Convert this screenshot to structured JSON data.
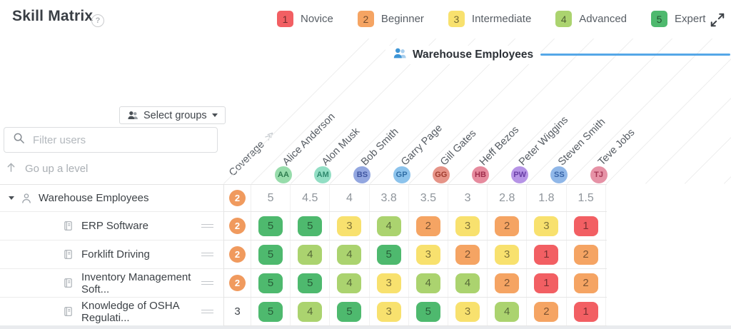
{
  "header": {
    "title": "Skill Matrix",
    "legend": [
      {
        "level": "1",
        "label": "Novice",
        "color": "#f25f63"
      },
      {
        "level": "2",
        "label": "Beginner",
        "color": "#f5a463"
      },
      {
        "level": "3",
        "label": "Intermediate",
        "color": "#f8e16e"
      },
      {
        "level": "4",
        "label": "Advanced",
        "color": "#abd36f"
      },
      {
        "level": "5",
        "label": "Expert",
        "color": "#4eb96e"
      }
    ]
  },
  "group_header": {
    "label": "Warehouse Employees",
    "line_color": "#55a7e7",
    "icon_color": "#3d95d6"
  },
  "sidebar": {
    "select_groups_label": "Select groups",
    "filter_placeholder": "Filter users",
    "go_up_label": "Go up a level",
    "group_label": "Warehouse Employees",
    "skills": [
      "ERP Software",
      "Forklift Driving",
      "Inventory Management Soft...",
      "Knowledge of OSHA Regulati..."
    ]
  },
  "matrix": {
    "coverage_header": "Coverage",
    "coverage_badge_color": "#f09a5e",
    "level_colors": {
      "1": "#f25f63",
      "2": "#f5a463",
      "3": "#f8e16e",
      "4": "#abd36f",
      "5": "#4eb96e"
    },
    "employees": [
      {
        "name": "Alice Anderson",
        "initials": "AA",
        "bg": "#97dcab",
        "fg": "#2e7d4f"
      },
      {
        "name": "Alon Musk",
        "initials": "AM",
        "bg": "#92dec4",
        "fg": "#2f8a6e"
      },
      {
        "name": "Bob Smith",
        "initials": "BS",
        "bg": "#93a7e0",
        "fg": "#3f55a0"
      },
      {
        "name": "Garry Page",
        "initials": "GP",
        "bg": "#8cc3ec",
        "fg": "#2f6ea6"
      },
      {
        "name": "Gill Gates",
        "initials": "GG",
        "bg": "#e69488",
        "fg": "#a03c2f"
      },
      {
        "name": "Heff Bezos",
        "initials": "HB",
        "bg": "#e68b9e",
        "fg": "#a02f4d"
      },
      {
        "name": "Peter Wiggins",
        "initials": "PW",
        "bg": "#b694e6",
        "fg": "#6a3fa6"
      },
      {
        "name": "Steven Smith",
        "initials": "SS",
        "bg": "#90b7e8",
        "fg": "#3864a8"
      },
      {
        "name": "Teve Jobs",
        "initials": "TJ",
        "bg": "#e692a6",
        "fg": "#a63654"
      }
    ],
    "coverage_row": {
      "badge": "2",
      "values": [
        "5",
        "4.5",
        "4",
        "3.8",
        "3.5",
        "3",
        "2.8",
        "1.8",
        "1.5"
      ]
    },
    "rows": [
      {
        "skill": "ERP Software",
        "coverage": "2",
        "coverage_is_badge": true,
        "cells": [
          "5",
          "5",
          "3",
          "4",
          "2",
          "3",
          "2",
          "3",
          "1"
        ]
      },
      {
        "skill": "Forklift Driving",
        "coverage": "2",
        "coverage_is_badge": true,
        "cells": [
          "5",
          "4",
          "4",
          "5",
          "3",
          "2",
          "3",
          "1",
          "2"
        ]
      },
      {
        "skill": "Inventory Management Soft...",
        "coverage": "2",
        "coverage_is_badge": true,
        "cells": [
          "5",
          "5",
          "4",
          "3",
          "4",
          "4",
          "2",
          "1",
          "2"
        ]
      },
      {
        "skill": "Knowledge of OSHA Regulati...",
        "coverage": "3",
        "coverage_is_badge": false,
        "cells": [
          "5",
          "4",
          "5",
          "3",
          "5",
          "3",
          "4",
          "2",
          "1"
        ]
      }
    ]
  }
}
